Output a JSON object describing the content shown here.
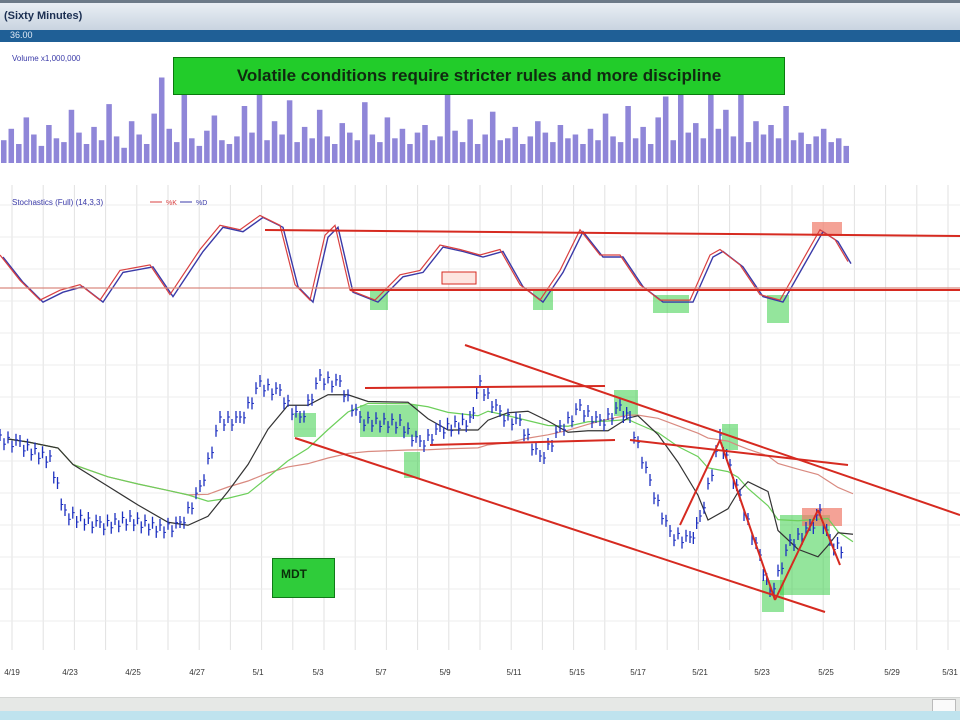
{
  "window": {
    "title": "(Sixty Minutes)",
    "subtitle": "36.00"
  },
  "annotations": {
    "banner": "Volatile conditions require stricter rules and more discipline",
    "ticker_box": "MDT"
  },
  "colors": {
    "volume": "#8f86d8",
    "stoch_k": "#d94040",
    "stoch_d": "#3a3aa8",
    "price": "#1c2fc0",
    "ma_fast": "#333333",
    "ma_slow": "#6ccf5a",
    "ma_long": "#d98a80",
    "trendline": "#d62a20",
    "highlight": "#3ccf4a",
    "highlight_red": "#f07a6a"
  },
  "chart_data": [
    {
      "type": "bar",
      "title": "Volume x1,000,000",
      "ylim": [
        0,
        5
      ],
      "values": [
        1.2,
        1.8,
        1.0,
        2.4,
        1.5,
        0.9,
        2.0,
        1.3,
        1.1,
        2.8,
        1.6,
        1.0,
        1.9,
        1.2,
        3.1,
        1.4,
        0.8,
        2.2,
        1.5,
        1.0,
        2.6,
        4.5,
        1.8,
        1.1,
        3.8,
        1.3,
        0.9,
        1.7,
        2.5,
        1.2,
        1.0,
        1.4,
        3.0,
        1.6,
        4.1,
        1.2,
        2.2,
        1.5,
        3.3,
        1.1,
        1.9,
        1.3,
        2.8,
        1.4,
        1.0,
        2.1,
        1.6,
        1.2,
        3.2,
        1.5,
        1.1,
        2.4,
        1.3,
        1.8,
        1.0,
        1.6,
        2.0,
        1.2,
        1.4,
        3.6,
        1.7,
        1.1,
        2.3,
        1.0,
        1.5,
        2.7,
        1.2,
        1.3,
        1.9,
        1.0,
        1.4,
        2.2,
        1.6,
        1.1,
        2.0,
        1.3,
        1.5,
        1.0,
        1.8,
        1.2,
        2.6,
        1.4,
        1.1,
        3.0,
        1.3,
        1.9,
        1.0,
        2.4,
        3.5,
        1.2,
        4.3,
        1.6,
        2.1,
        1.3,
        4.2,
        1.8,
        2.8,
        1.4,
        3.7,
        1.1,
        2.2,
        1.5,
        2.0,
        1.3,
        3.0,
        1.2,
        1.6,
        1.0,
        1.4,
        1.8,
        1.1,
        1.3,
        0.9
      ]
    },
    {
      "type": "line",
      "title": "Stochastics (Full) (14,3,3)",
      "legend": [
        "%K",
        "%D"
      ],
      "ylim": [
        0,
        100
      ],
      "levels": [
        80,
        20
      ],
      "marker_label": "",
      "x": [
        0,
        20,
        40,
        60,
        80,
        100,
        120,
        150,
        170,
        200,
        220,
        240,
        260,
        280,
        295,
        310,
        325,
        335,
        350,
        375,
        400,
        420,
        440,
        460,
        480,
        500,
        520,
        540,
        560,
        580,
        600,
        620,
        640,
        660,
        690,
        710,
        720,
        740,
        760,
        780,
        800,
        820,
        835,
        848
      ],
      "values": [
        50,
        27,
        9,
        18,
        23,
        9,
        36,
        41,
        14,
        55,
        77,
        73,
        86,
        77,
        23,
        9,
        68,
        77,
        18,
        9,
        32,
        36,
        59,
        55,
        50,
        55,
        23,
        9,
        36,
        73,
        50,
        50,
        23,
        9,
        9,
        50,
        55,
        41,
        14,
        9,
        41,
        73,
        64,
        44
      ]
    },
    {
      "type": "line",
      "title": "MDT",
      "ylim": [
        0,
        100
      ],
      "x_tick_labels": [
        "4/19",
        "4/23",
        "4/25",
        "4/27",
        "5/1",
        "5/3",
        "5/7",
        "5/9",
        "5/11",
        "5/15",
        "5/17",
        "5/21",
        "5/23",
        "5/25",
        "5/29",
        "5/31"
      ],
      "x": [
        0,
        20,
        50,
        65,
        100,
        130,
        160,
        180,
        200,
        220,
        240,
        260,
        280,
        300,
        320,
        340,
        360,
        400,
        420,
        440,
        470,
        480,
        500,
        520,
        540,
        560,
        580,
        600,
        620,
        630,
        650,
        670,
        690,
        700,
        720,
        730,
        740,
        760,
        770,
        790,
        810,
        820,
        830,
        845
      ],
      "close": [
        67,
        65,
        60,
        42,
        38,
        40,
        37,
        38,
        50,
        73,
        73,
        85,
        82,
        73,
        87,
        85,
        73,
        72,
        65,
        70,
        73,
        85,
        75,
        72,
        60,
        70,
        77,
        72,
        77,
        73,
        52,
        35,
        33,
        40,
        67,
        57,
        47,
        27,
        15,
        32,
        37,
        42,
        32,
        30
      ]
    }
  ]
}
